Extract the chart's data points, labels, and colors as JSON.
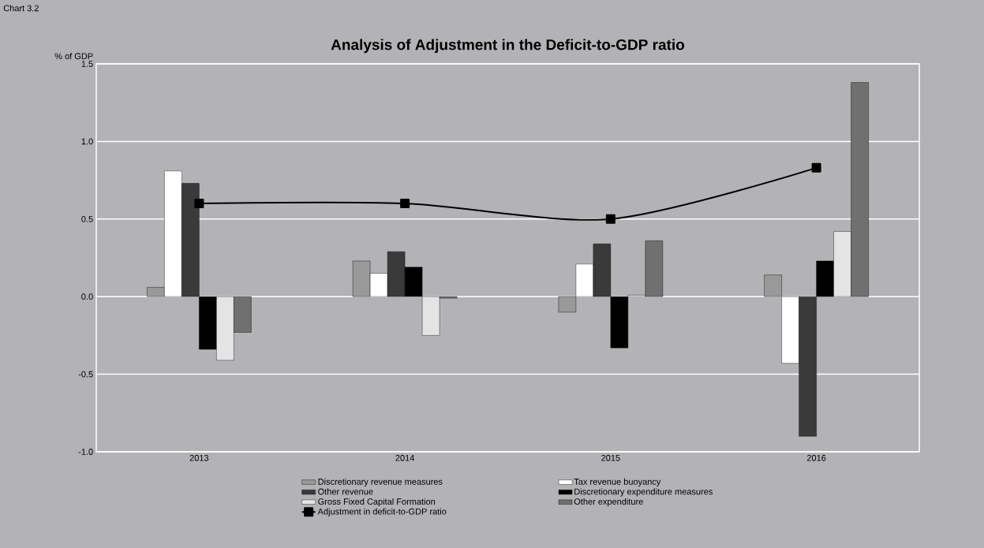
{
  "chart_data": {
    "type": "bar",
    "title": "Analysis of Adjustment in the Deficit-to-GDP ratio",
    "ylabel": "% of GDP",
    "annotations": [
      "Chart 3.2"
    ],
    "categories": [
      "2013",
      "2014",
      "2015",
      "2016"
    ],
    "series": [
      {
        "name": "Discretionary revenue measures",
        "color": "#999999",
        "values": [
          0.06,
          0.23,
          -0.1,
          0.14
        ]
      },
      {
        "name": "Tax revenue buoyancy",
        "color": "#ffffff",
        "values": [
          0.81,
          0.15,
          0.21,
          -0.43
        ]
      },
      {
        "name": "Other revenue",
        "color": "#3a3a3a",
        "values": [
          0.73,
          0.29,
          0.34,
          -0.9
        ]
      },
      {
        "name": "Discretionary expenditure measures",
        "color": "#000000",
        "values": [
          -0.34,
          0.19,
          -0.33,
          0.23
        ]
      },
      {
        "name": "Gross Fixed Capital Formation",
        "color": "#e4e4e4",
        "values": [
          -0.41,
          -0.25,
          0.01,
          0.42
        ]
      },
      {
        "name": "Other expenditure",
        "color": "#707070",
        "values": [
          -0.23,
          -0.01,
          0.36,
          1.38
        ]
      },
      {
        "name": "Adjustment in deficit-to-GDP ratio",
        "color": "#000000",
        "type": "line",
        "marker": "square",
        "values": [
          0.6,
          0.6,
          0.5,
          0.83
        ]
      }
    ],
    "ylim": [
      -1.0,
      1.5
    ],
    "yticks": [
      {
        "value": -1.0,
        "label": "-1.0"
      },
      {
        "value": -0.5,
        "label": "-0.5"
      },
      {
        "value": 0.0,
        "label": "0.0"
      },
      {
        "value": 0.5,
        "label": "0.5"
      },
      {
        "value": 1.0,
        "label": "1.0"
      },
      {
        "value": 1.5,
        "label": "1.5"
      }
    ],
    "grid": "y",
    "legend": "bottom"
  }
}
